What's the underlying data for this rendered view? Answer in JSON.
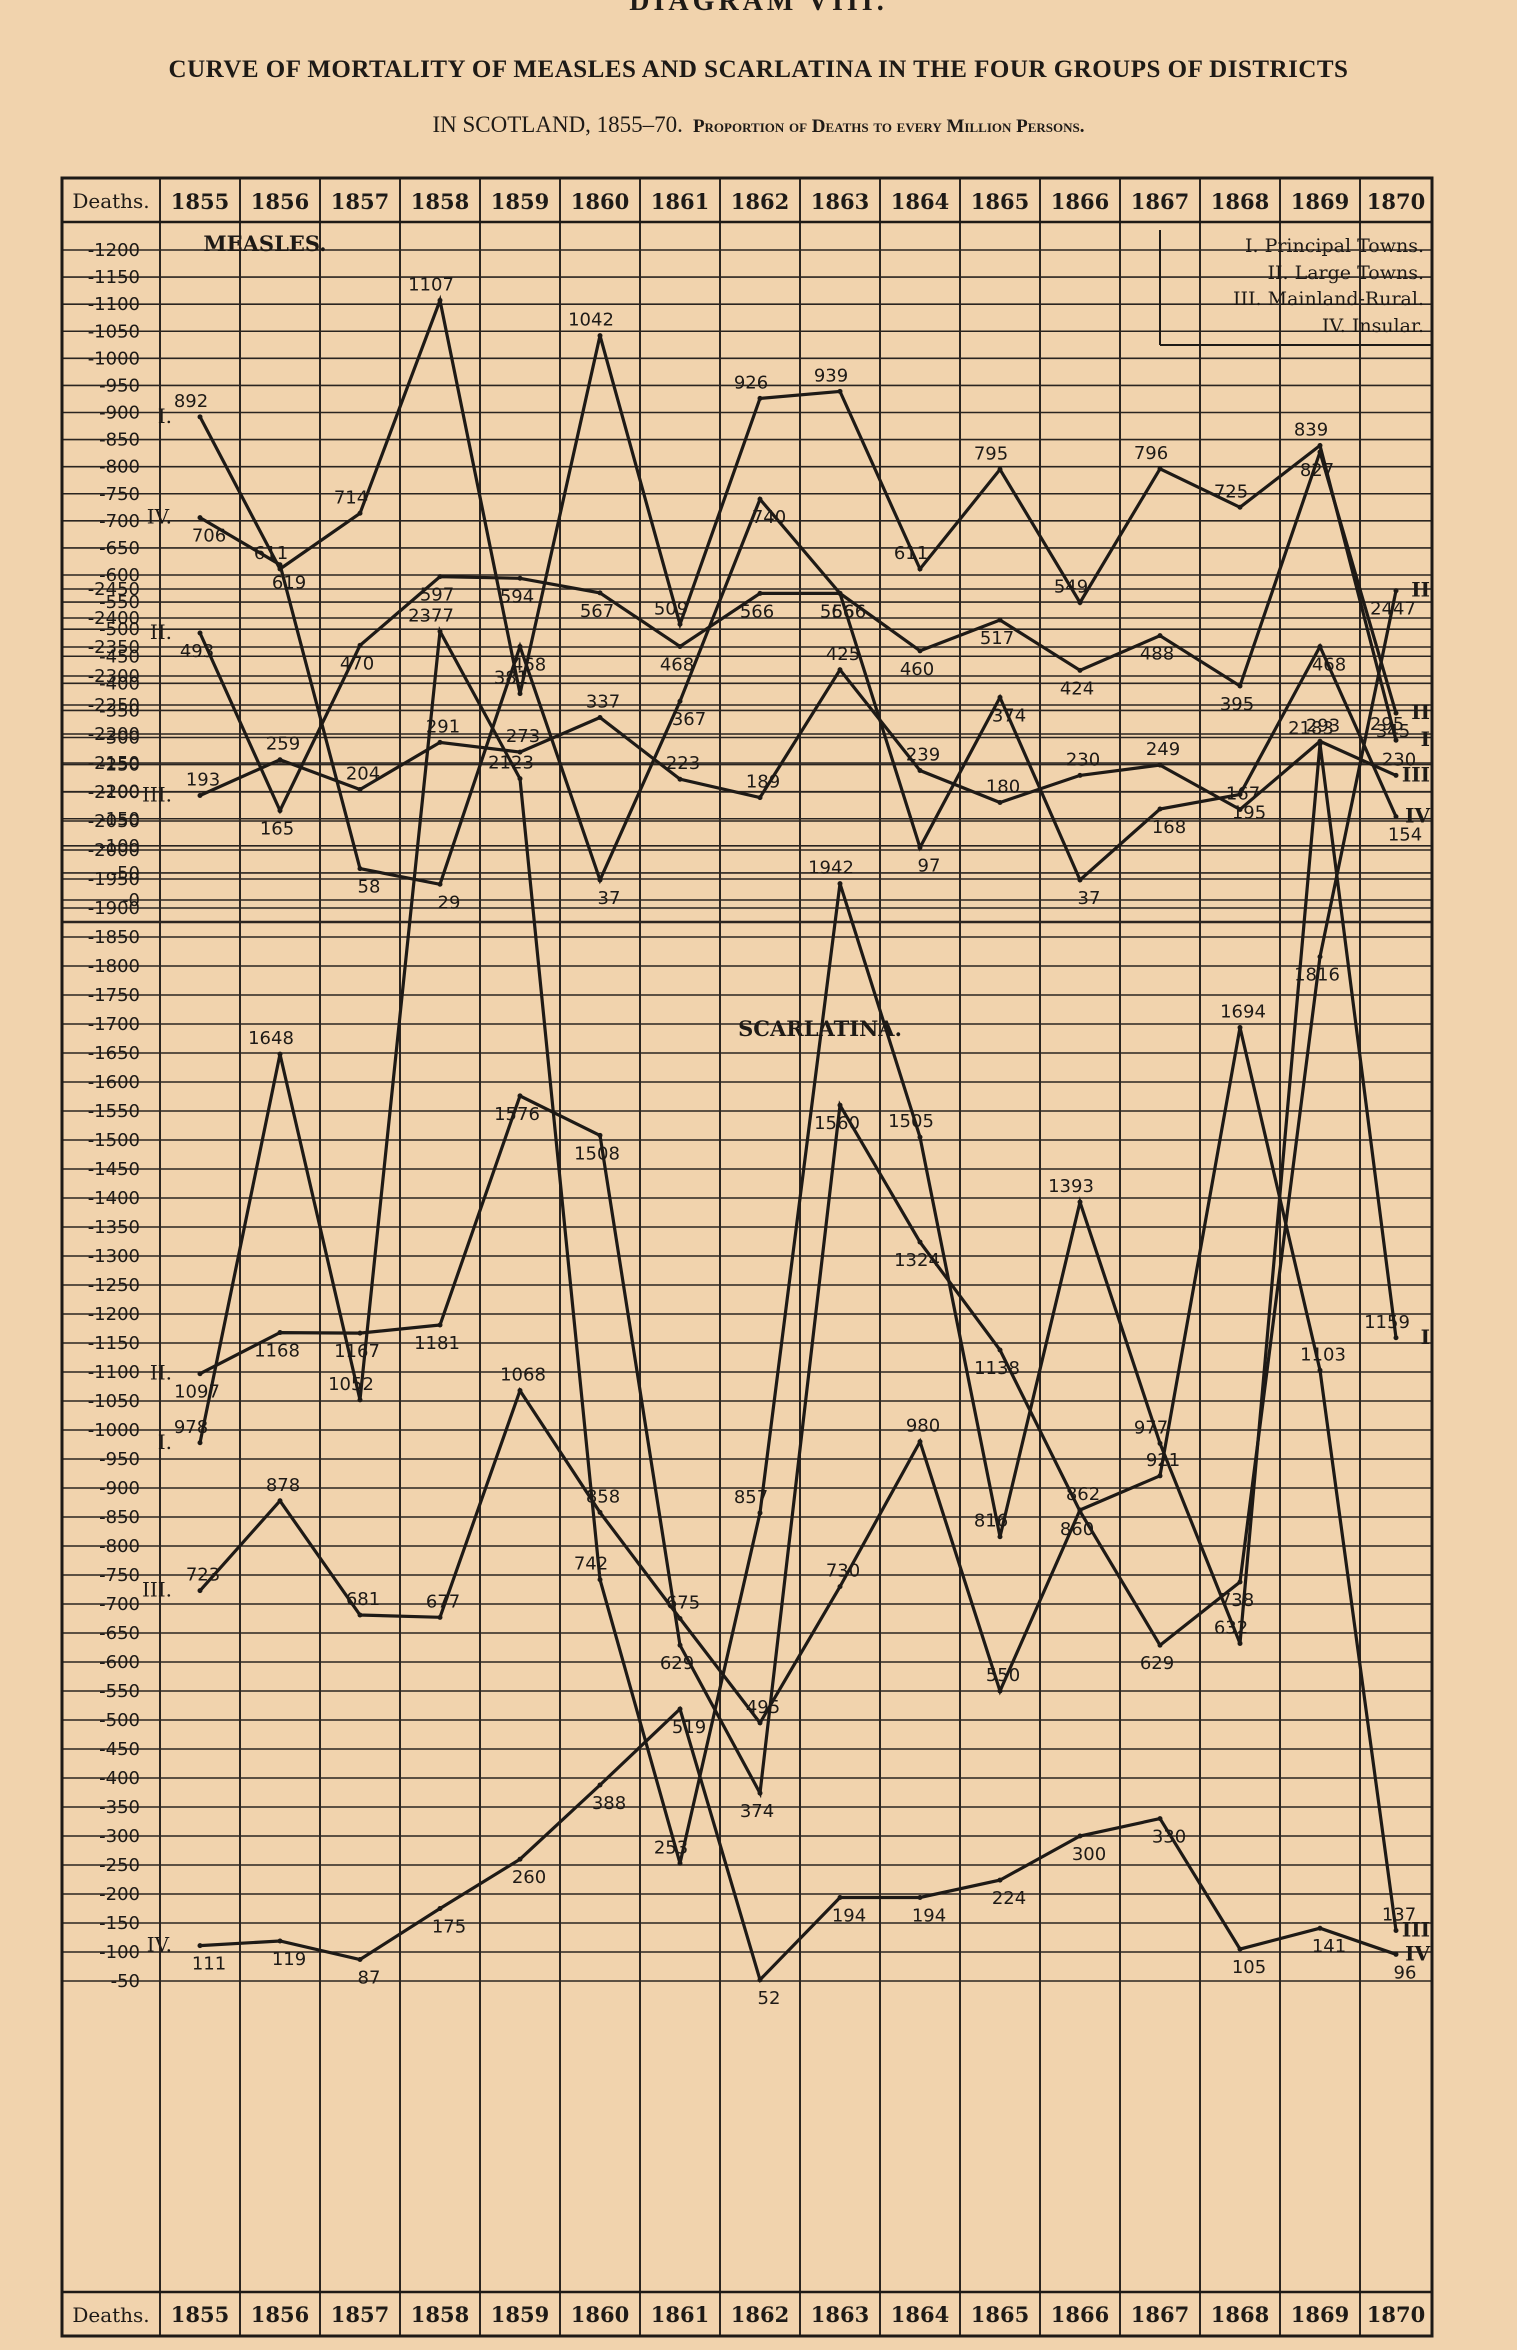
{
  "header": {
    "diagram_label": "DIAGRAM VIII.",
    "title_line1": "CURVE OF MORTALITY OF MEASLES AND SCARLATINA IN THE FOUR GROUPS OF DISTRICTS",
    "title_line2": "IN SCOTLAND, 1855–70.",
    "subtitle": "Proportion of Deaths to every Million Persons."
  },
  "colors": {
    "background": "#f1d3ad",
    "ink": "#1e1a16",
    "grid": "#2a2420"
  },
  "chart_data": [
    {
      "type": "line",
      "title": "MEASLES.",
      "column_header": "Deaths.",
      "x": [
        "1855",
        "1856",
        "1857",
        "1858",
        "1859",
        "1860",
        "1861",
        "1862",
        "1863",
        "1864",
        "1865",
        "1866",
        "1867",
        "1868",
        "1869",
        "1870"
      ],
      "ylim": [
        0,
        1200
      ],
      "y_ticks": [
        0,
        50,
        100,
        150,
        200,
        250,
        300,
        350,
        400,
        450,
        500,
        550,
        600,
        650,
        700,
        750,
        800,
        850,
        900,
        950,
        1000,
        1050,
        1100,
        1150,
        1200
      ],
      "grid": true,
      "legend": {
        "placement": "top-right",
        "entries": [
          "I. Principal Towns.",
          "II. Large Towns.",
          "III. Mainland-Rural.",
          "IV. Insular."
        ]
      },
      "series": [
        {
          "name": "I",
          "values": [
            892,
            611,
            714,
            1107,
            381,
            1042,
            509,
            926,
            939,
            611,
            795,
            549,
            796,
            725,
            839,
            295
          ]
        },
        {
          "name": "II",
          "values": [
            493,
            165,
            470,
            597,
            594,
            567,
            468,
            566,
            566,
            460,
            517,
            424,
            488,
            395,
            827,
            345
          ]
        },
        {
          "name": "III",
          "values": [
            193,
            259,
            204,
            291,
            273,
            337,
            223,
            189,
            425,
            239,
            180,
            230,
            249,
            167,
            293,
            230
          ]
        },
        {
          "name": "IV",
          "values": [
            706,
            619,
            58,
            29,
            468,
            37,
            367,
            740,
            566,
            97,
            374,
            37,
            168,
            195,
            468,
            154
          ]
        }
      ]
    },
    {
      "type": "line",
      "title": "SCARLATINA.",
      "column_header": "Deaths.",
      "x": [
        "1855",
        "1856",
        "1857",
        "1858",
        "1859",
        "1860",
        "1861",
        "1862",
        "1863",
        "1864",
        "1865",
        "1866",
        "1867",
        "1868",
        "1869",
        "1870"
      ],
      "ylim": [
        50,
        2450
      ],
      "y_ticks": [
        50,
        100,
        150,
        200,
        250,
        300,
        350,
        400,
        450,
        500,
        550,
        600,
        650,
        700,
        750,
        800,
        850,
        900,
        950,
        1000,
        1050,
        1100,
        1150,
        1200,
        1250,
        1300,
        1350,
        1400,
        1450,
        1500,
        1550,
        1600,
        1650,
        1700,
        1750,
        1800,
        1850,
        1900,
        1950,
        2000,
        2050,
        2100,
        2150,
        2200,
        2250,
        2300,
        2350,
        2400,
        2450
      ],
      "grid": true,
      "series": [
        {
          "name": "I",
          "values": [
            978,
            1648,
            1052,
            2377,
            2123,
            742,
            253,
            857,
            1942,
            1505,
            816,
            1393,
            977,
            632,
            2183,
            1159
          ]
        },
        {
          "name": "II",
          "values": [
            1097,
            1168,
            1167,
            1181,
            1576,
            1508,
            629,
            374,
            1560,
            1324,
            1138,
            860,
            629,
            738,
            1816,
            2447
          ]
        },
        {
          "name": "III",
          "values": [
            723,
            878,
            681,
            677,
            1068,
            858,
            675,
            495,
            730,
            980,
            550,
            862,
            921,
            1694,
            1103,
            137
          ]
        },
        {
          "name": "IV",
          "values": [
            111,
            119,
            87,
            175,
            260,
            388,
            519,
            52,
            194,
            194,
            224,
            300,
            330,
            105,
            141,
            96
          ]
        }
      ]
    }
  ]
}
